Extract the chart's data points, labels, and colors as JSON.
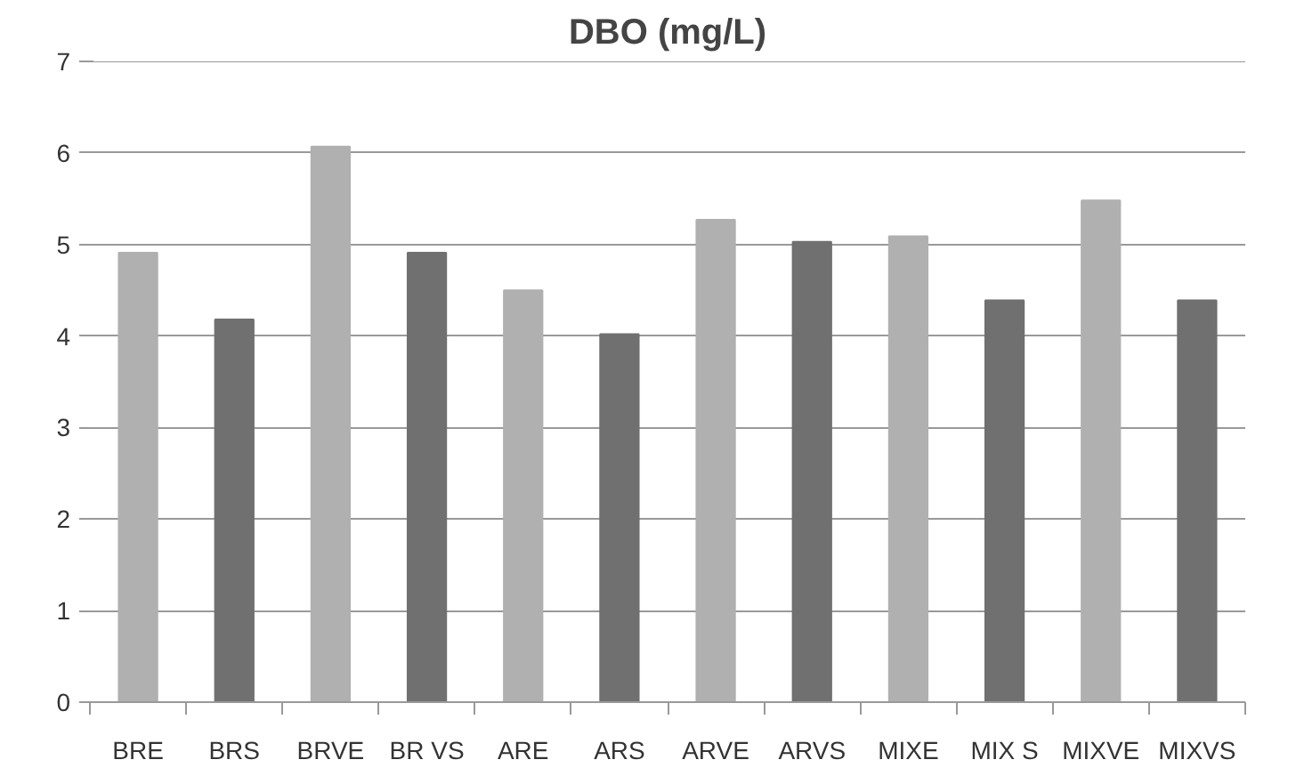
{
  "chart_data": {
    "type": "bar",
    "title": "DBO (mg/L)",
    "categories": [
      "BRE",
      "BRS",
      "BRVE",
      "BR VS",
      "ARE",
      "ARS",
      "ARVE",
      "ARVS",
      "MIXE",
      "MIX S",
      "MIXVE",
      "MIXVS"
    ],
    "values": [
      4.91,
      4.18,
      6.07,
      4.91,
      4.5,
      4.02,
      5.27,
      5.03,
      5.09,
      4.39,
      5.48,
      4.39
    ],
    "colors": [
      "#b0b0b0",
      "#707070",
      "#b0b0b0",
      "#707070",
      "#b0b0b0",
      "#707070",
      "#b0b0b0",
      "#707070",
      "#b0b0b0",
      "#707070",
      "#b0b0b0",
      "#707070"
    ],
    "ylim": [
      0,
      7
    ],
    "yticks": [
      0,
      1,
      2,
      3,
      4,
      5,
      6,
      7
    ],
    "grid": "y"
  }
}
